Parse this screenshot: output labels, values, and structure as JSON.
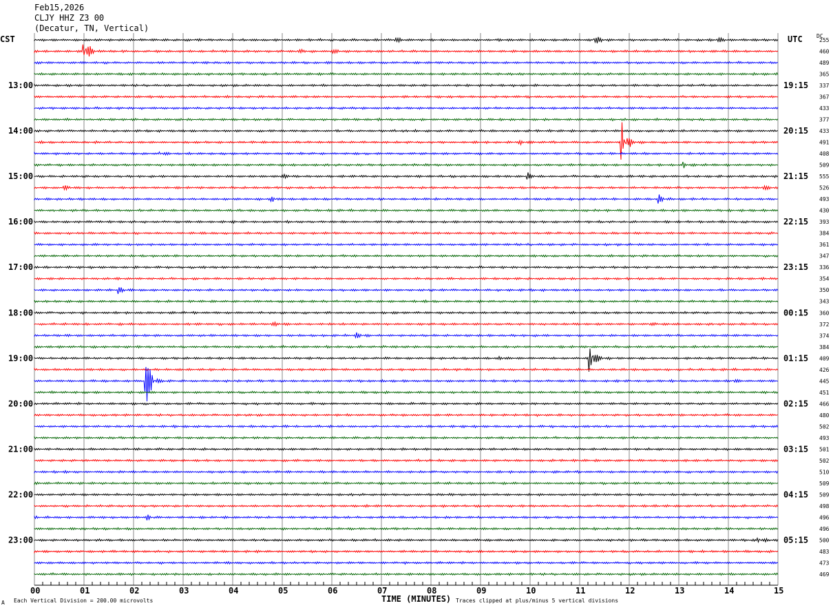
{
  "header": {
    "date": "Feb15,2026",
    "station": "CLJY HHZ Z3 00",
    "location": "(Decatur, TN, Vertical)"
  },
  "left_axis_title": "CST",
  "right_axis_title": "UTC",
  "dc_title": "DC",
  "footer": {
    "scale_note": "Each Vertical Division =  200.00 microvolts",
    "clip_note": "Traces clipped at plus/minus 5 vertical divisions",
    "corner_mark": "A"
  },
  "chart_data": {
    "type": "line",
    "title": "CLJY HHZ Z3 00 (Decatur, TN, Vertical) Feb15,2026",
    "xlabel": "TIME (MINUTES)",
    "xlim": [
      0,
      15
    ],
    "x_ticks": [
      "00",
      "01",
      "02",
      "03",
      "04",
      "05",
      "06",
      "07",
      "08",
      "09",
      "10",
      "11",
      "12",
      "13",
      "14",
      "15"
    ],
    "rows": 48,
    "row_minutes": 15,
    "trace_colors": [
      "#000000",
      "#ff0000",
      "#0000ff",
      "#006400"
    ],
    "cst_labels": [
      "13:00",
      "14:00",
      "15:00",
      "16:00",
      "17:00",
      "18:00",
      "19:00",
      "20:00",
      "21:00",
      "22:00",
      "23:00"
    ],
    "utc_labels": [
      "19:15",
      "20:15",
      "21:15",
      "22:15",
      "23:15",
      "00:15",
      "01:15",
      "02:15",
      "03:15",
      "04:15",
      "05:15"
    ],
    "label_row_start": 4,
    "label_row_step": 4,
    "dc_offsets": [
      "255",
      "460",
      "489",
      "365",
      "337",
      "367",
      "433",
      "377",
      "433",
      "491",
      "408",
      "509",
      "555",
      "526",
      "493",
      "430",
      "393",
      "384",
      "361",
      "347",
      "336",
      "354",
      "350",
      "343",
      "360",
      "372",
      "374",
      "384",
      "409",
      "426",
      "445",
      "451",
      "466",
      "480",
      "502",
      "493",
      "501",
      "502",
      "510",
      "509",
      "509",
      "498",
      "496",
      "496",
      "500",
      "483",
      "473",
      "469"
    ],
    "grid": true
  }
}
